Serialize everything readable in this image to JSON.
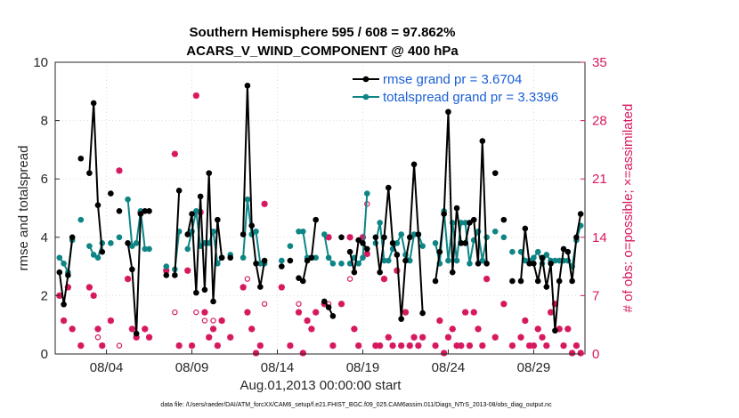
{
  "chart_data": {
    "type": "line",
    "title": "Southern Hemisphere 595 / 608 = 97.862%",
    "subtitle": "ACARS_V_WIND_COMPONENT @ 400 hPa",
    "xlabel": "Aug.01,2013 00:00:00 start",
    "ylabel_left": "rmse and totalspread",
    "ylabel_right": "# of obs: o=possible; ×=assimilated",
    "footer": "data file: /Users/raeder/DAI/ATM_forcXX/CAM6_setup/f.e21.FHIST_BGC.f09_025.CAM6assim.011/Diags_NTrS_2013-08/obs_diag_output.nc",
    "xlim": [
      1.0,
      32.0
    ],
    "ylim_left": [
      0,
      10
    ],
    "ylim_right": [
      0,
      35
    ],
    "x_ticks": [
      4,
      9,
      14,
      19,
      24,
      29
    ],
    "x_tick_labels": [
      "08/04",
      "08/09",
      "08/14",
      "08/19",
      "08/24",
      "08/29"
    ],
    "y_left_ticks": [
      "0",
      "2",
      "4",
      "6",
      "8",
      "10"
    ],
    "y_right_ticks": [
      "0",
      "7",
      "14",
      "21",
      "28",
      "35"
    ],
    "grid": true,
    "legend_position": "top-right",
    "colors": {
      "rmse": "#000000",
      "spread": "#0e8585",
      "obs": "#d6185f",
      "legend_text": "#1a5fd6"
    },
    "series": [
      {
        "name": "rmse grand pr = 3.6704",
        "axis": "left",
        "x": [
          1.25,
          1.5,
          1.75,
          2.0,
          2.5,
          3.0,
          3.25,
          3.5,
          3.75,
          4.25,
          4.75,
          5.25,
          5.5,
          5.75,
          6.0,
          6.25,
          6.5,
          7.5,
          8.0,
          8.25,
          8.75,
          9.0,
          9.25,
          9.5,
          9.75,
          10.0,
          10.25,
          10.5,
          10.75,
          11.25,
          12.0,
          12.25,
          12.5,
          12.75,
          13.0,
          13.25,
          14.25,
          14.75,
          15.25,
          15.5,
          15.75,
          16.0,
          16.25,
          16.75,
          17.0,
          17.25,
          17.75,
          18.25,
          18.5,
          18.75,
          19.0,
          19.25,
          19.75,
          20.0,
          20.25,
          20.5,
          20.75,
          21.0,
          21.25,
          21.5,
          21.75,
          22.0,
          22.25,
          22.5,
          23.25,
          23.5,
          23.75,
          24.0,
          24.25,
          24.5,
          24.75,
          25.0,
          25.25,
          25.5,
          25.75,
          26.0,
          26.25,
          26.75,
          27.25,
          27.75,
          28.25,
          28.5,
          28.75,
          29.0,
          29.25,
          29.5,
          29.75,
          30.0,
          30.25,
          30.5,
          30.75,
          31.0,
          31.25,
          31.5,
          31.75
        ],
        "y": [
          2.8,
          1.7,
          2.7,
          4.0,
          6.7,
          6.2,
          8.6,
          5.1,
          3.5,
          5.5,
          4.9,
          3.8,
          2.9,
          0.7,
          4.8,
          4.9,
          4.9,
          2.7,
          2.7,
          5.6,
          4.1,
          4.8,
          2.1,
          5.4,
          2.2,
          6.2,
          1.8,
          4.6,
          3.3,
          3.3,
          4.1,
          9.2,
          4.4,
          3.1,
          2.3,
          3.2,
          3.0,
          3.2,
          2.6,
          2.5,
          3.2,
          3.3,
          4.6,
          1.8,
          1.6,
          1.3,
          4.0,
          3.5,
          2.8,
          3.9,
          3.8,
          3.6,
          4.0,
          2.8,
          4.0,
          5.7,
          3.8,
          3.4,
          1.2,
          3.2,
          4.0,
          6.5,
          4.1,
          1.4,
          2.5,
          3.5,
          4.8,
          8.3,
          2.8,
          5.0,
          3.8,
          3.8,
          4.5,
          4.6,
          3.1,
          7.3,
          3.1,
          6.2,
          4.6,
          2.5,
          2.5,
          4.3,
          3.1,
          3.1,
          2.5,
          3.3,
          2.3,
          3.1,
          0.8,
          2.5,
          3.6,
          3.5,
          2.5,
          4.0,
          4.8
        ]
      },
      {
        "name": "totalspread grand pr = 3.3396",
        "axis": "left",
        "x": [
          1.25,
          1.5,
          1.75,
          2.0,
          2.5,
          3.0,
          3.25,
          3.5,
          3.75,
          4.25,
          4.75,
          5.25,
          5.5,
          5.75,
          6.0,
          6.25,
          6.5,
          7.5,
          8.0,
          8.25,
          8.75,
          9.0,
          9.25,
          9.5,
          9.75,
          10.0,
          10.25,
          10.5,
          10.75,
          11.25,
          12.0,
          12.25,
          12.5,
          12.75,
          13.0,
          13.25,
          14.25,
          14.75,
          15.25,
          15.5,
          15.75,
          16.0,
          16.25,
          16.75,
          17.0,
          17.25,
          17.75,
          18.25,
          18.5,
          18.75,
          19.0,
          19.25,
          19.75,
          20.0,
          20.25,
          20.5,
          20.75,
          21.0,
          21.25,
          21.5,
          21.75,
          22.0,
          22.25,
          22.5,
          23.25,
          23.5,
          23.75,
          24.0,
          24.25,
          24.5,
          24.75,
          25.0,
          25.25,
          25.5,
          25.75,
          26.0,
          26.25,
          26.75,
          27.25,
          27.75,
          28.25,
          28.5,
          28.75,
          29.0,
          29.25,
          29.5,
          29.75,
          30.0,
          30.25,
          30.5,
          30.75,
          31.0,
          31.25,
          31.5,
          31.75
        ],
        "y": [
          3.3,
          3.1,
          2.8,
          3.9,
          4.6,
          3.7,
          3.4,
          3.3,
          3.8,
          3.8,
          4.0,
          5.3,
          3.7,
          3.8,
          4.9,
          3.6,
          3.6,
          3.0,
          2.9,
          4.2,
          3.6,
          4.2,
          4.9,
          3.7,
          3.8,
          3.8,
          4.2,
          3.1,
          3.3,
          3.4,
          3.3,
          5.3,
          4.1,
          4.2,
          3.1,
          3.1,
          3.2,
          3.7,
          4.2,
          4.2,
          3.3,
          3.3,
          3.3,
          4.1,
          3.3,
          3.1,
          3.1,
          3.1,
          3.3,
          3.1,
          3.3,
          5.5,
          3.8,
          4.5,
          3.2,
          3.2,
          3.6,
          3.8,
          4.1,
          3.4,
          3.2,
          4.1,
          4.1,
          3.7,
          3.8,
          3.1,
          4.9,
          3.2,
          4.5,
          3.2,
          4.5,
          4.5,
          3.1,
          3.9,
          4.2,
          3.2,
          4.0,
          4.2,
          4.0,
          3.5,
          3.5,
          3.2,
          3.2,
          3.3,
          3.5,
          3.1,
          3.4,
          3.2,
          3.2,
          3.2,
          3.2,
          3.2,
          3.0,
          3.9,
          4.4
        ]
      },
      {
        "name": "# of obs possible",
        "axis": "right",
        "marker": "o",
        "x": [
          1.25,
          1.5,
          1.75,
          2.0,
          2.5,
          3.0,
          3.25,
          3.5,
          3.75,
          4.25,
          4.75,
          5.25,
          5.5,
          5.75,
          6.0,
          6.25,
          6.5,
          7.5,
          8.0,
          8.25,
          8.75,
          9.0,
          9.25,
          9.5,
          9.75,
          10.0,
          10.25,
          10.5,
          10.75,
          11.25,
          12.0,
          12.25,
          12.5,
          12.75,
          13.0,
          13.25,
          14.25,
          14.75,
          15.25,
          15.5,
          15.75,
          16.0,
          16.25,
          16.75,
          17.0,
          17.25,
          17.75,
          18.25,
          18.5,
          18.75,
          19.0,
          19.25,
          19.75,
          20.0,
          20.25,
          20.5,
          20.75,
          21.0,
          21.25,
          21.5,
          21.75,
          22.0,
          22.25,
          22.5,
          23.25,
          23.5,
          23.75,
          24.0,
          24.25,
          24.5,
          24.75,
          25.0,
          25.25,
          25.5,
          25.75,
          26.0,
          26.25,
          26.75,
          27.25,
          27.75,
          28.25,
          28.5,
          28.75,
          29.0,
          29.25,
          29.5,
          29.75,
          30.0,
          30.25,
          30.5,
          30.75,
          31.0,
          31.25,
          31.5,
          31.75
        ],
        "y": [
          7,
          4,
          8,
          3,
          1,
          8,
          7,
          2,
          1,
          4,
          1,
          9,
          3,
          2,
          17,
          3,
          2,
          10,
          5,
          1,
          10,
          1,
          5,
          17,
          4,
          2,
          4,
          1,
          4,
          2,
          8,
          9,
          3,
          0,
          1,
          6,
          8,
          1,
          6,
          0,
          4,
          3,
          5,
          6,
          6,
          1,
          6,
          9,
          3,
          1,
          14,
          18,
          1,
          1,
          9,
          2,
          1,
          10,
          1,
          5,
          1,
          2,
          1,
          2,
          1,
          4,
          0,
          2,
          3,
          1,
          1,
          5,
          1,
          5,
          3,
          1,
          9,
          2,
          6,
          1,
          2,
          4,
          1,
          1,
          3,
          2,
          1,
          5,
          6,
          3,
          1,
          3,
          0,
          1,
          0
        ]
      },
      {
        "name": "# of obs assimilated",
        "axis": "right",
        "marker": "×",
        "x": [
          1.25,
          1.5,
          1.75,
          2.0,
          2.5,
          3.0,
          3.25,
          3.5,
          3.75,
          4.25,
          4.75,
          5.25,
          5.5,
          5.75,
          6.0,
          6.25,
          6.5,
          7.5,
          8.0,
          8.25,
          8.75,
          9.0,
          9.25,
          9.5,
          9.75,
          10.0,
          10.25,
          10.5,
          10.75,
          11.25,
          12.0,
          12.25,
          12.5,
          12.75,
          13.0,
          13.25,
          14.25,
          14.75,
          15.25,
          15.5,
          15.75,
          16.0,
          16.25,
          16.75,
          17.0,
          17.25,
          17.75,
          18.25,
          18.5,
          18.75,
          19.0,
          19.25,
          19.75,
          20.0,
          20.25,
          20.5,
          20.75,
          21.0,
          21.25,
          21.5,
          21.75,
          22.0,
          22.25,
          22.5,
          23.25,
          23.5,
          23.75,
          24.0,
          24.25,
          24.5,
          24.75,
          25.0,
          25.25,
          25.5,
          25.75,
          26.0,
          26.25,
          26.75,
          27.25,
          27.75,
          28.25,
          28.5,
          28.75,
          29.0,
          29.25,
          29.5,
          29.75,
          30.0,
          30.25,
          30.5,
          30.75,
          31.0,
          31.25,
          31.5,
          31.75
        ],
        "y": [
          7,
          4,
          8,
          3,
          1,
          8,
          7,
          3,
          1,
          4,
          22,
          9,
          3,
          2,
          17,
          3,
          2,
          10,
          24,
          1,
          10,
          1,
          31,
          17,
          5,
          2,
          3,
          1,
          4,
          2,
          8,
          5,
          3,
          0,
          1,
          18,
          8,
          1,
          5,
          0,
          4,
          3,
          5,
          6,
          14,
          1,
          6,
          14,
          3,
          1,
          14,
          12,
          1,
          1,
          9,
          2,
          1,
          10,
          1,
          5,
          1,
          2,
          1,
          2,
          1,
          4,
          0,
          2,
          3,
          1,
          1,
          5,
          1,
          5,
          3,
          1,
          9,
          2,
          6,
          1,
          2,
          4,
          1,
          1,
          3,
          2,
          1,
          5,
          6,
          3,
          1,
          3,
          0,
          1,
          0
        ]
      }
    ]
  }
}
